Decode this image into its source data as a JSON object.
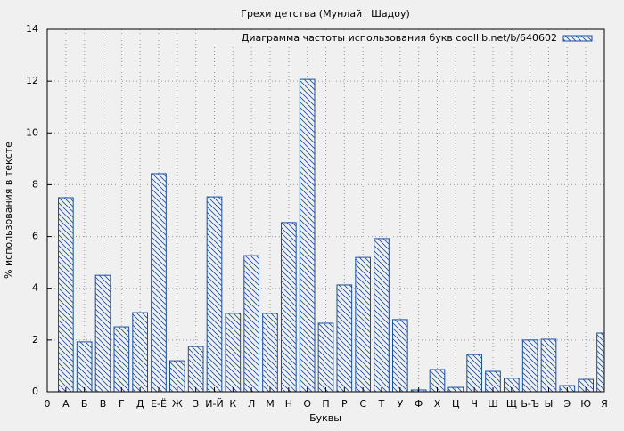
{
  "chart_data": {
    "type": "bar",
    "title": "Грехи детства (Мунлайт Шадоу)",
    "x_label": "Буквы",
    "y_label": "% использования в тексте",
    "categories": [
      "0",
      "А",
      "Б",
      "В",
      "Г",
      "Д",
      "Е-Ё",
      "Ж",
      "З",
      "И-Й",
      "К",
      "Л",
      "М",
      "Н",
      "О",
      "П",
      "Р",
      "С",
      "Т",
      "У",
      "Ф",
      "Х",
      "Ц",
      "Ч",
      "Ш",
      "Щ",
      "Ь-Ъ",
      "Ы",
      "Э",
      "Ю",
      "Я"
    ],
    "series": [
      {
        "name": "Диаграмма частоты использования букв coollib.net/b/640602",
        "color": "#1a4fa0",
        "values": [
          null,
          7.5,
          1.93,
          4.5,
          2.51,
          3.06,
          8.43,
          1.2,
          1.75,
          7.53,
          3.03,
          5.26,
          3.03,
          6.54,
          12.07,
          2.65,
          4.13,
          5.19,
          5.92,
          2.79,
          0.07,
          0.86,
          0.17,
          1.44,
          0.79,
          0.52,
          2.0,
          2.03,
          0.24,
          0.48,
          2.27
        ]
      }
    ],
    "ylim": [
      0,
      14
    ],
    "yticks": [
      0,
      2,
      4,
      6,
      8,
      10,
      12,
      14
    ],
    "grid": true,
    "legend": "top-right"
  }
}
